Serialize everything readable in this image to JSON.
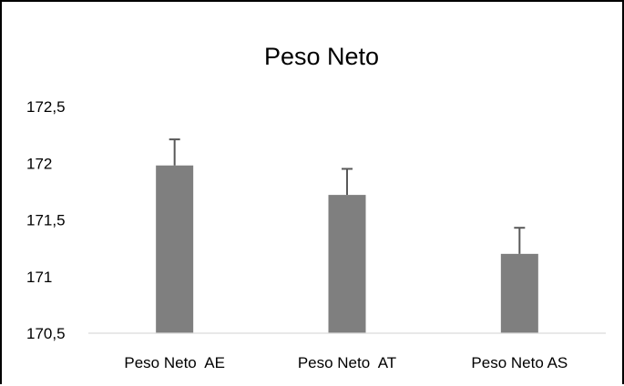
{
  "chart_data": {
    "type": "bar",
    "title": "Peso Neto",
    "categories": [
      "Peso Neto  AE",
      "Peso Neto  AT",
      "Peso Neto AS"
    ],
    "series": [
      {
        "values": [
          171.98,
          171.72,
          171.2
        ],
        "error_plus": [
          0.23,
          0.23,
          0.23
        ]
      }
    ],
    "ylim": [
      170.5,
      172.5
    ],
    "yticks": [
      "170,5",
      "171",
      "171,5",
      "172",
      "172,5"
    ],
    "ytick_values": [
      170.5,
      171,
      171.5,
      172,
      172.5
    ],
    "grid": false,
    "legend": "none",
    "bar_color": "#7f7f7f",
    "error_bar_color": "#595959",
    "axis_color": "#d9d9d9"
  }
}
